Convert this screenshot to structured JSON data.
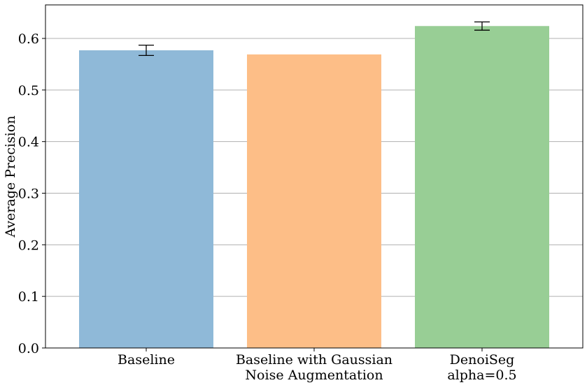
{
  "chart_data": {
    "type": "bar",
    "categories": [
      [
        "Baseline"
      ],
      [
        "Baseline with Gaussian",
        "Noise Augmentation"
      ],
      [
        "DenoiSeg",
        "alpha=0.5"
      ]
    ],
    "values": [
      0.577,
      0.569,
      0.624
    ],
    "errors": [
      0.01,
      null,
      0.008
    ],
    "colors": [
      "#8fb9d8",
      "#fdbe87",
      "#98ce95"
    ],
    "ylabel": "Average Precision",
    "ylim": [
      0,
      0.665
    ],
    "yticks": [
      0.0,
      0.1,
      0.2,
      0.3,
      0.4,
      0.5,
      0.6
    ],
    "ytick_labels": [
      "0.0",
      "0.1",
      "0.2",
      "0.3",
      "0.4",
      "0.5",
      "0.6"
    ],
    "grid": "y"
  }
}
